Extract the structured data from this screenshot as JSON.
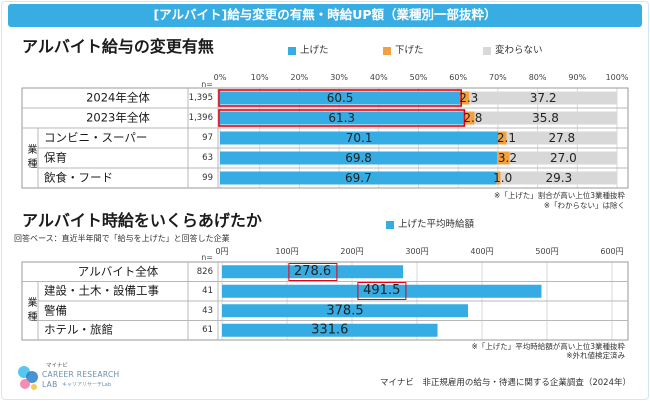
{
  "header": {
    "title": "[アルバイト]給与変更の有無・時給UP額（業種別一部抜粋）"
  },
  "chart_data": [
    {
      "type": "bar",
      "orientation": "horizontal",
      "stacked": true,
      "title": "アルバイト給与の変更有無",
      "legend_position": "top",
      "grid": true,
      "n_label": "n=",
      "xlim": [
        0,
        100
      ],
      "x_ticks": [
        "0%",
        "10%",
        "20%",
        "30%",
        "40%",
        "50%",
        "60%",
        "70%",
        "80%",
        "90%",
        "100%"
      ],
      "series": [
        {
          "name": "上げた",
          "color": "#35ace4"
        },
        {
          "name": "下げた",
          "color": "#f4a03e"
        },
        {
          "name": "変わらない",
          "color": "#d8d8d8"
        }
      ],
      "highlight_color": "#e50012",
      "group_label": "業種",
      "rows": [
        {
          "label": "2024年全体",
          "n": "1,395",
          "values": [
            60.5,
            2.3,
            37.2
          ],
          "highlight": true,
          "grouped": false
        },
        {
          "label": "2023年全体",
          "n": "1,396",
          "values": [
            61.3,
            2.8,
            35.8
          ],
          "highlight": true,
          "grouped": false
        },
        {
          "label": "コンビニ・スーパー",
          "n": "97",
          "values": [
            70.1,
            2.1,
            27.8
          ],
          "highlight": false,
          "grouped": true
        },
        {
          "label": "保育",
          "n": "63",
          "values": [
            69.8,
            3.2,
            27.0
          ],
          "highlight": false,
          "grouped": true
        },
        {
          "label": "飲食・フード",
          "n": "99",
          "values": [
            69.7,
            1.0,
            29.3
          ],
          "highlight": false,
          "grouped": true
        }
      ],
      "notes": [
        "※「上げた」割合が高い上位3業種抜粋",
        "※「わからない」は除く"
      ]
    },
    {
      "type": "bar",
      "orientation": "horizontal",
      "stacked": false,
      "title": "アルバイト時給をいくらあげたか",
      "subtitle": "回答ベース：直近半年間で「給与を上げた」と回答した企業",
      "legend_position": "top",
      "grid": true,
      "n_label": "n=",
      "xlim": [
        0,
        600
      ],
      "x_ticks": [
        "0円",
        "100円",
        "200円",
        "300円",
        "400円",
        "500円",
        "600円"
      ],
      "series": [
        {
          "name": "上げた平均時給額",
          "color": "#35ace4"
        }
      ],
      "highlight_color": "#e50012",
      "group_label": "業種",
      "rows": [
        {
          "label": "アルバイト全体",
          "n": "826",
          "values": [
            278.6
          ],
          "highlight": true,
          "grouped": false
        },
        {
          "label": "建設・土木・設備工事",
          "n": "41",
          "values": [
            491.5
          ],
          "highlight": true,
          "grouped": true
        },
        {
          "label": "警備",
          "n": "43",
          "values": [
            378.5
          ],
          "highlight": false,
          "grouped": true
        },
        {
          "label": "ホテル・旅館",
          "n": "61",
          "values": [
            331.6
          ],
          "highlight": false,
          "grouped": true
        }
      ],
      "notes": [
        "※「上げた」平均時給額が高い上位3業種抜粋",
        "※外れ値検定済み"
      ]
    }
  ],
  "footer": {
    "logo": {
      "brand": "マイナビ",
      "line1": "CAREER RESEARCH",
      "line2": "LAB",
      "line3": "キャリアリサーチLab",
      "icon": "career-research-lab-logo-icon"
    },
    "source": "マイナビ　非正規雇用の給与・待遇に関する企業調査（2024年）"
  }
}
